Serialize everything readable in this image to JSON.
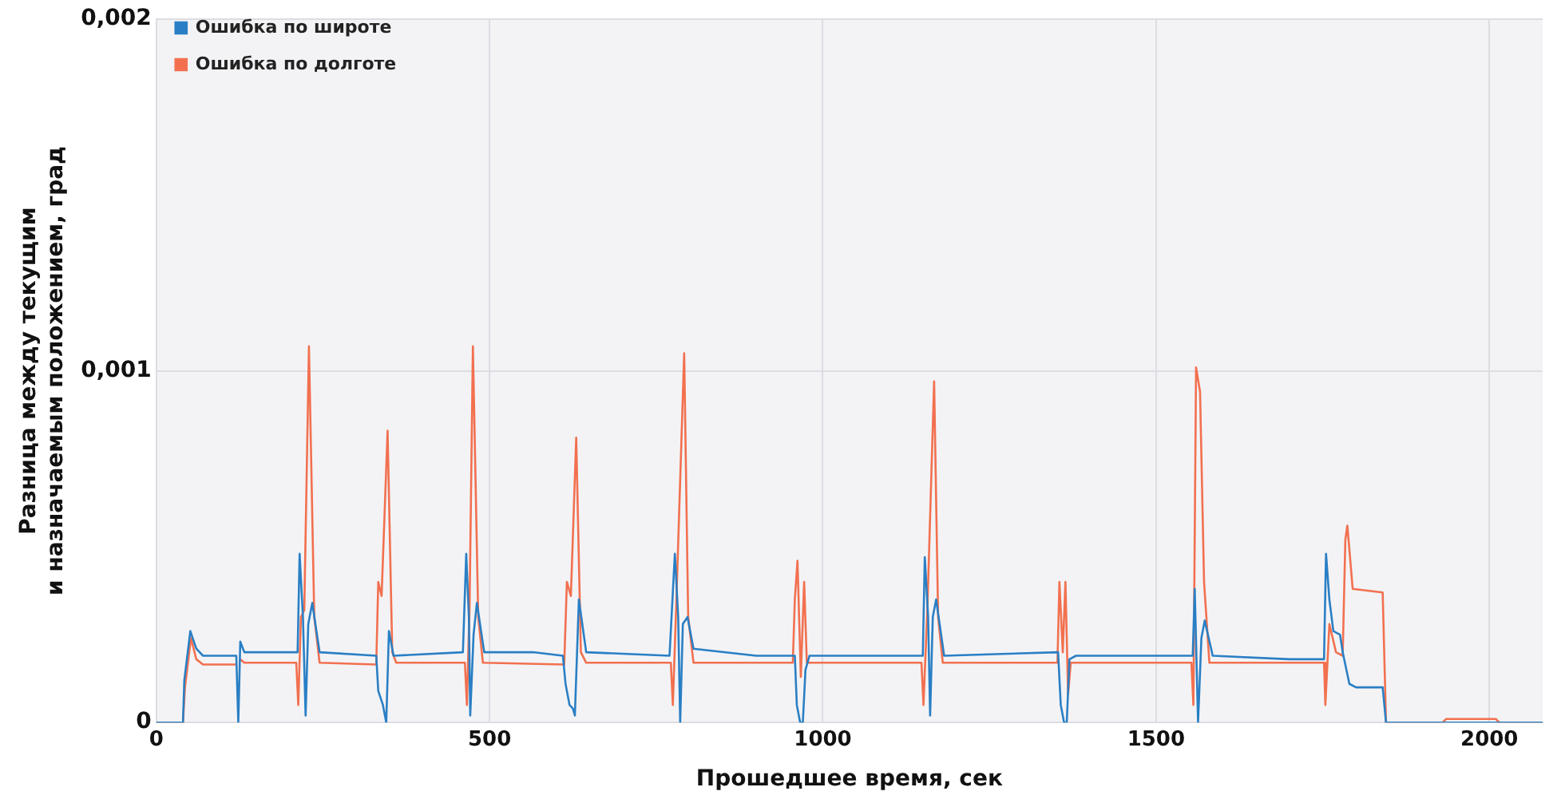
{
  "chart_data": {
    "type": "line",
    "xlabel": "Прошедшее время, сек",
    "ylabel": "Разница между текущим\nи назначаемым положением, град",
    "xlim": [
      0,
      2080
    ],
    "xticks": [
      0,
      500,
      1000,
      1500,
      2000
    ],
    "ylim": [
      0,
      0.002
    ],
    "yticks": [
      0,
      {
        "value": 0.001,
        "label": "0,001"
      },
      {
        "value": 0.002,
        "label": "0,002"
      }
    ],
    "grid": true,
    "legend": "top left",
    "marker": "none",
    "line_style": "solid",
    "series": [
      {
        "name": "Ошибка по широте",
        "color": "#2a7fc4",
        "x": [
          0,
          40,
          42,
          51,
          60,
          70,
          120,
          123,
          126,
          132,
          200,
          212,
          215,
          220,
          224,
          228,
          234,
          245,
          330,
          333,
          340,
          345,
          349,
          356,
          460,
          465,
          469,
          471,
          476,
          481,
          492,
          560,
          565,
          610,
          614,
          620,
          625,
          628,
          634,
          645,
          770,
          778,
          783,
          786,
          790,
          797,
          806,
          900,
          958,
          961,
          966,
          970,
          974,
          980,
          1150,
          1153,
          1158,
          1161,
          1165,
          1170,
          1182,
          1353,
          1357,
          1362,
          1366,
          1370,
          1380,
          1555,
          1558,
          1563,
          1568,
          1573,
          1585,
          1700,
          1752,
          1755,
          1760,
          1766,
          1776,
          1780,
          1790,
          1800,
          1840,
          1845,
          2080
        ],
        "values": [
          0,
          0,
          0.00012,
          0.00026,
          0.00021,
          0.00019,
          0.00019,
          0,
          0.00023,
          0.0002,
          0.0002,
          0.0002,
          0.00048,
          0.0003,
          2e-05,
          0.00028,
          0.00034,
          0.0002,
          0.00019,
          9e-05,
          5e-05,
          0,
          0.00026,
          0.00019,
          0.0002,
          0.00048,
          0.0003,
          2e-05,
          0.00025,
          0.00034,
          0.0002,
          0.0002,
          0.0002,
          0.00019,
          0.00011,
          5e-05,
          4e-05,
          2e-05,
          0.00035,
          0.0002,
          0.00019,
          0.00048,
          0.0003,
          0,
          0.00028,
          0.0003,
          0.00021,
          0.00019,
          0.00019,
          5e-05,
          0,
          0,
          0.00015,
          0.00019,
          0.00019,
          0.00047,
          0.0003,
          2e-05,
          0.0003,
          0.00035,
          0.00019,
          0.0002,
          5e-05,
          0,
          0,
          0.00018,
          0.00019,
          0.00019,
          0.00038,
          0,
          0.00024,
          0.00029,
          0.00019,
          0.00018,
          0.00018,
          0.00048,
          0.00035,
          0.00026,
          0.00025,
          0.0002,
          0.00011,
          0.0001,
          0.0001,
          0,
          0
        ]
      },
      {
        "name": "Ошибка по долготе",
        "color": "#f2704f",
        "x": [
          0,
          40,
          43,
          52,
          60,
          70,
          120,
          123,
          126,
          132,
          210,
          213,
          217,
          222,
          229,
          237,
          245,
          330,
          333,
          338,
          347,
          354,
          360,
          463,
          466,
          470,
          475,
          483,
          490,
          612,
          616,
          622,
          630,
          637,
          645,
          772,
          775,
          780,
          792,
          798,
          806,
          955,
          958,
          962,
          967,
          972,
          976,
          1148,
          1151,
          1157,
          1167,
          1173,
          1180,
          1352,
          1355,
          1360,
          1364,
          1368,
          1372,
          1553,
          1556,
          1560,
          1566,
          1572,
          1580,
          1752,
          1754,
          1760,
          1770,
          1780,
          1784,
          1787,
          1795,
          1840,
          1845,
          1930,
          1935,
          2010,
          2015,
          2080
        ],
        "values": [
          0,
          0,
          0.0001,
          0.00024,
          0.00018,
          0.000165,
          0.000165,
          null,
          0.00018,
          0.00017,
          0.00017,
          5e-05,
          0.0003,
          0.00032,
          0.00107,
          0.0003,
          0.00017,
          0.000165,
          0.0004,
          0.00036,
          0.00083,
          0.0002,
          0.00017,
          0.00017,
          5e-05,
          0.00033,
          0.00107,
          0.0003,
          0.00017,
          0.000165,
          0.0004,
          0.00036,
          0.00081,
          0.0002,
          0.00017,
          0.00017,
          5e-05,
          0.00033,
          0.00105,
          0.0003,
          0.00017,
          0.00017,
          0.00035,
          0.00046,
          0.00013,
          0.0004,
          0.00017,
          0.00017,
          5e-05,
          0.00033,
          0.00097,
          0.0003,
          0.00017,
          0.00017,
          0.0004,
          0.0002,
          0.0004,
          8e-05,
          0.00017,
          0.00017,
          5e-05,
          0.00101,
          0.00094,
          0.0004,
          0.00017,
          0.00017,
          5e-05,
          0.00028,
          0.0002,
          0.00019,
          0.00052,
          0.00056,
          0.00038,
          0.00037,
          0,
          0,
          1e-05,
          1e-05,
          0,
          0
        ]
      }
    ]
  }
}
